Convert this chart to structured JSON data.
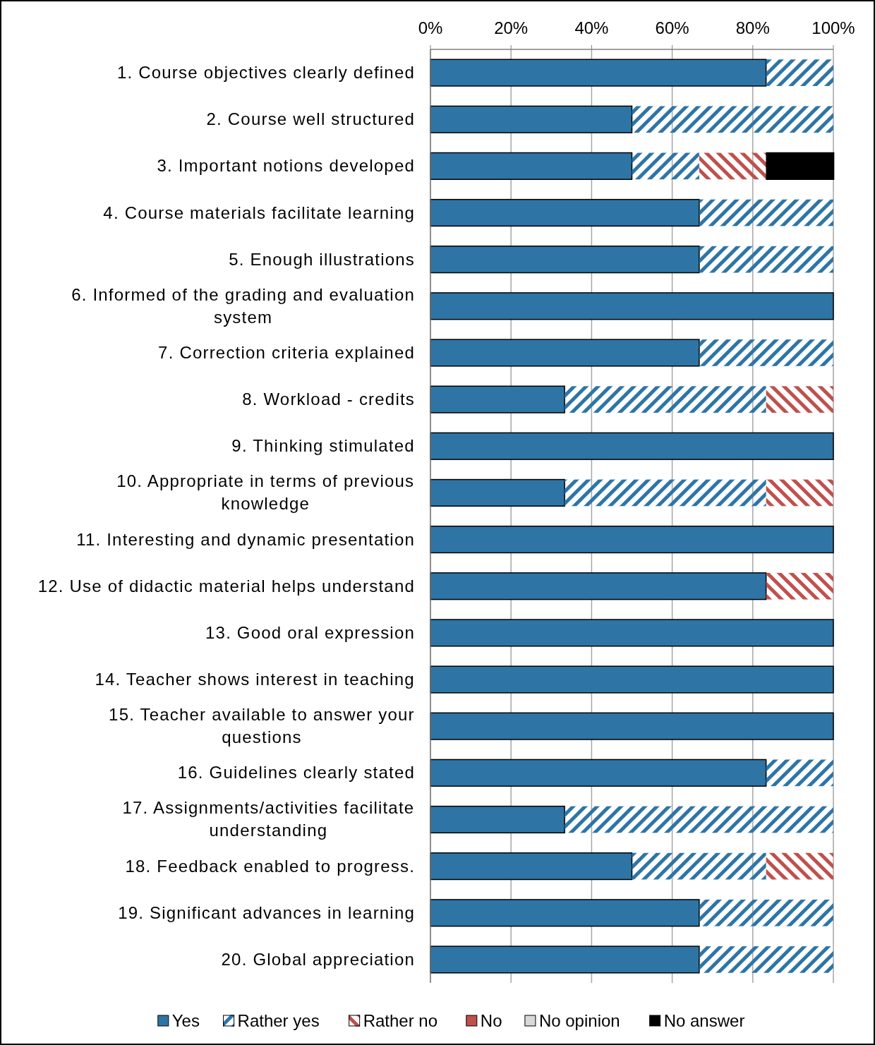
{
  "chart_data": {
    "type": "bar",
    "orientation": "horizontal",
    "stacked": true,
    "categories": [
      "1. Course objectives clearly defined",
      "2. Course well structured",
      "3. Important notions developed",
      "4. Course materials facilitate learning",
      "5. Enough illustrations",
      "6. Informed of the grading and evaluation system",
      "7. Correction criteria explained",
      "8. Workload - credits",
      "9. Thinking stimulated",
      "10. Appropriate in terms of previous knowledge",
      "11. Interesting and dynamic presentation",
      "12. Use of didactic material helps understand",
      "13. Good oral expression",
      "14. Teacher shows interest in teaching",
      "15. Teacher available to answer your questions",
      "16. Guidelines clearly stated",
      "17. Assignments/activities facilitate understanding",
      "18. Feedback enabled to progress.",
      "19. Significant advances in learning",
      "20. Global appreciation"
    ],
    "series": [
      {
        "name": "Yes",
        "color": "#2e75a6",
        "values": [
          83.3,
          50,
          50,
          66.7,
          66.7,
          100,
          66.7,
          33.3,
          100,
          33.3,
          100,
          83.3,
          100,
          100,
          100,
          83.3,
          33.3,
          50,
          66.7,
          66.7
        ]
      },
      {
        "name": "Rather yes",
        "color": "#2e75a6",
        "values": [
          16.7,
          50,
          16.7,
          33.3,
          33.3,
          0,
          33.3,
          50,
          0,
          50,
          0,
          0,
          0,
          0,
          0,
          16.7,
          66.7,
          33.3,
          33.3,
          33.3
        ]
      },
      {
        "name": "Rather no",
        "color": "#c0504d",
        "values": [
          0,
          0,
          16.7,
          0,
          0,
          0,
          0,
          16.7,
          0,
          16.7,
          0,
          16.7,
          0,
          0,
          0,
          0,
          0,
          16.7,
          0,
          0
        ]
      },
      {
        "name": "No",
        "color": "#c0504d",
        "values": [
          0,
          0,
          0,
          0,
          0,
          0,
          0,
          0,
          0,
          0,
          0,
          0,
          0,
          0,
          0,
          0,
          0,
          0,
          0,
          0
        ]
      },
      {
        "name": "No opinion",
        "color": "#d9d9d9",
        "values": [
          0,
          0,
          0,
          0,
          0,
          0,
          0,
          0,
          0,
          0,
          0,
          0,
          0,
          0,
          0,
          0,
          0,
          0,
          0,
          0
        ]
      },
      {
        "name": "No answer",
        "color": "#000000",
        "values": [
          0,
          0,
          16.7,
          0,
          0,
          0,
          0,
          0,
          0,
          0,
          0,
          0,
          0,
          0,
          0,
          0,
          0,
          0,
          0,
          0
        ]
      }
    ],
    "xlim": [
      0,
      100
    ],
    "xticks": [
      {
        "value": 0,
        "label": "0%"
      },
      {
        "value": 20,
        "label": "20%"
      },
      {
        "value": 40,
        "label": "40%"
      },
      {
        "value": 60,
        "label": "60%"
      },
      {
        "value": 80,
        "label": "80%"
      },
      {
        "value": 100,
        "label": "100%"
      }
    ],
    "grid": "x",
    "legend": "bottom"
  }
}
